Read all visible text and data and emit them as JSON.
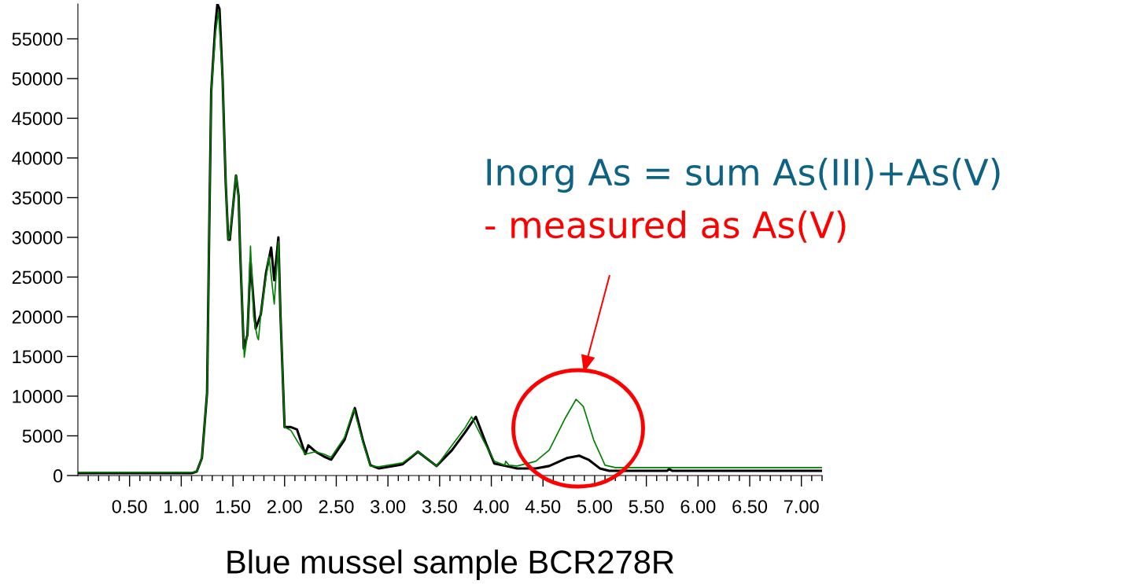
{
  "chart_data": {
    "type": "line",
    "xlabel": "Blue mussel sample BCR278R",
    "annotations": [
      "Inorg As = sum As(III)+As(V)",
      "- measured as As(V)"
    ],
    "xlim": [
      0,
      7.2
    ],
    "ylim": [
      0,
      59400
    ],
    "xticks": [
      {
        "value": 0.1,
        "label": null
      },
      {
        "value": 0.2,
        "label": null
      },
      {
        "value": 0.3,
        "label": null
      },
      {
        "value": 0.4,
        "label": null
      },
      {
        "value": 0.5,
        "label": "0.50"
      },
      {
        "value": 0.6,
        "label": null
      },
      {
        "value": 0.7,
        "label": null
      },
      {
        "value": 0.8,
        "label": null
      },
      {
        "value": 0.9,
        "label": null
      },
      {
        "value": 1.0,
        "label": "1.00"
      },
      {
        "value": 1.1,
        "label": null
      },
      {
        "value": 1.2,
        "label": null
      },
      {
        "value": 1.3,
        "label": null
      },
      {
        "value": 1.4,
        "label": null
      },
      {
        "value": 1.5,
        "label": "1.50"
      },
      {
        "value": 1.6,
        "label": null
      },
      {
        "value": 1.7,
        "label": null
      },
      {
        "value": 1.8,
        "label": null
      },
      {
        "value": 1.9,
        "label": null
      },
      {
        "value": 2.0,
        "label": "2.00"
      },
      {
        "value": 2.1,
        "label": null
      },
      {
        "value": 2.2,
        "label": null
      },
      {
        "value": 2.3,
        "label": null
      },
      {
        "value": 2.4,
        "label": null
      },
      {
        "value": 2.5,
        "label": "2.50"
      },
      {
        "value": 2.6,
        "label": null
      },
      {
        "value": 2.7,
        "label": null
      },
      {
        "value": 2.8,
        "label": null
      },
      {
        "value": 2.9,
        "label": null
      },
      {
        "value": 3.0,
        "label": "3.00"
      },
      {
        "value": 3.1,
        "label": null
      },
      {
        "value": 3.2,
        "label": null
      },
      {
        "value": 3.3,
        "label": null
      },
      {
        "value": 3.4,
        "label": null
      },
      {
        "value": 3.5,
        "label": "3.50"
      },
      {
        "value": 3.6,
        "label": null
      },
      {
        "value": 3.7,
        "label": null
      },
      {
        "value": 3.8,
        "label": null
      },
      {
        "value": 3.9,
        "label": null
      },
      {
        "value": 4.0,
        "label": "4.00"
      },
      {
        "value": 4.1,
        "label": null
      },
      {
        "value": 4.2,
        "label": null
      },
      {
        "value": 4.3,
        "label": null
      },
      {
        "value": 4.4,
        "label": null
      },
      {
        "value": 4.5,
        "label": "4.50"
      },
      {
        "value": 4.6,
        "label": null
      },
      {
        "value": 4.7,
        "label": null
      },
      {
        "value": 4.8,
        "label": null
      },
      {
        "value": 4.9,
        "label": null
      },
      {
        "value": 5.0,
        "label": "5.00"
      },
      {
        "value": 5.1,
        "label": null
      },
      {
        "value": 5.2,
        "label": null
      },
      {
        "value": 5.3,
        "label": null
      },
      {
        "value": 5.4,
        "label": null
      },
      {
        "value": 5.5,
        "label": "5.50"
      },
      {
        "value": 5.6,
        "label": null
      },
      {
        "value": 5.7,
        "label": null
      },
      {
        "value": 5.8,
        "label": null
      },
      {
        "value": 5.9,
        "label": null
      },
      {
        "value": 6.0,
        "label": "6.00"
      },
      {
        "value": 6.1,
        "label": null
      },
      {
        "value": 6.2,
        "label": null
      },
      {
        "value": 6.3,
        "label": null
      },
      {
        "value": 6.4,
        "label": null
      },
      {
        "value": 6.5,
        "label": "6.50"
      },
      {
        "value": 6.6,
        "label": null
      },
      {
        "value": 6.7,
        "label": null
      },
      {
        "value": 6.8,
        "label": null
      },
      {
        "value": 6.9,
        "label": null
      },
      {
        "value": 7.0,
        "label": "7.00"
      },
      {
        "value": 7.1,
        "label": null
      },
      {
        "value": 7.2,
        "label": null
      }
    ],
    "yticks": [
      0,
      5000,
      10000,
      15000,
      20000,
      25000,
      30000,
      35000,
      40000,
      45000,
      50000,
      55000
    ],
    "grid": false,
    "marker": "none",
    "line_style": "solid",
    "series": [
      {
        "color": "#000000",
        "x": [
          0,
          0.5,
          1.0,
          1.1,
          1.15,
          1.2,
          1.25,
          1.27,
          1.29,
          1.33,
          1.35,
          1.37,
          1.4,
          1.43,
          1.455,
          1.47,
          1.53,
          1.555,
          1.57,
          1.605,
          1.64,
          1.67,
          1.72,
          1.77,
          1.82,
          1.87,
          1.9,
          1.94,
          1.96,
          2.0,
          2.06,
          2.12,
          2.2,
          2.23,
          2.3,
          2.38,
          2.45,
          2.58,
          2.68,
          2.76,
          2.83,
          2.91,
          3.14,
          3.29,
          3.47,
          3.62,
          3.75,
          3.85,
          3.95,
          4.03,
          4.14,
          4.25,
          4.43,
          4.56,
          4.73,
          4.85,
          4.94,
          5.05,
          5.14,
          5.7,
          5.72,
          5.75,
          7.2
        ],
        "values": [
          300,
          300,
          300,
          300,
          500,
          2200,
          10400,
          30200,
          48400,
          56700,
          59400,
          58800,
          50000,
          36900,
          29700,
          29700,
          37800,
          35200,
          28200,
          16000,
          17700,
          27000,
          18500,
          20300,
          25500,
          28700,
          24600,
          30000,
          20300,
          6100,
          6100,
          5800,
          2700,
          3800,
          3000,
          2400,
          2000,
          4500,
          8500,
          4300,
          1300,
          900,
          1400,
          3000,
          1200,
          3200,
          5500,
          7400,
          4000,
          1500,
          1200,
          900,
          900,
          1200,
          2200,
          2500,
          2000,
          900,
          600,
          600,
          800,
          600,
          600
        ]
      },
      {
        "color": "#008000",
        "x": [
          0,
          0.5,
          1.0,
          1.1,
          1.15,
          1.2,
          1.25,
          1.27,
          1.29,
          1.33,
          1.36,
          1.4,
          1.43,
          1.455,
          1.47,
          1.53,
          1.555,
          1.57,
          1.61,
          1.64,
          1.67,
          1.7,
          1.735,
          1.747,
          1.77,
          1.82,
          1.85,
          1.9,
          1.94,
          1.96,
          2.0,
          2.06,
          2.12,
          2.2,
          2.3,
          2.38,
          2.45,
          2.58,
          2.67,
          2.76,
          2.83,
          2.91,
          3.14,
          3.29,
          3.47,
          3.62,
          3.75,
          3.81,
          3.92,
          4.03,
          4.13,
          4.14,
          4.17,
          4.25,
          4.43,
          4.56,
          4.71,
          4.82,
          4.89,
          4.99,
          5.1,
          5.2,
          7.2
        ],
        "values": [
          400,
          400,
          400,
          400,
          500,
          2200,
          10400,
          30200,
          48400,
          55500,
          58500,
          50000,
          36900,
          29700,
          30000,
          37800,
          35200,
          28200,
          14900,
          17700,
          28900,
          20000,
          17500,
          17100,
          20300,
          25000,
          27600,
          21600,
          29500,
          20300,
          6100,
          5700,
          4400,
          2700,
          3000,
          2700,
          2300,
          4800,
          8400,
          4100,
          1200,
          1100,
          1600,
          3000,
          1200,
          3800,
          6100,
          7400,
          4500,
          1800,
          1300,
          1800,
          1300,
          1200,
          1800,
          3200,
          7100,
          9600,
          8700,
          4500,
          1300,
          1000,
          1000
        ]
      }
    ]
  }
}
